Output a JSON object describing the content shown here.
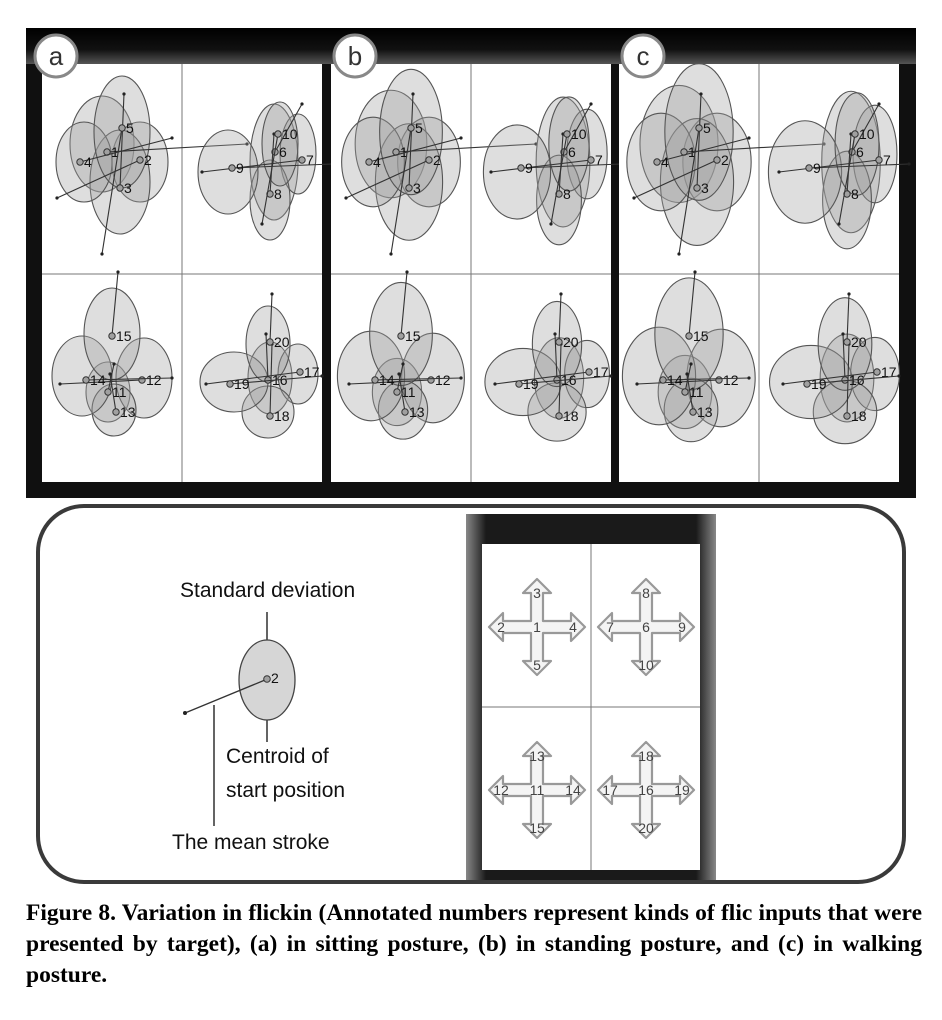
{
  "panels": [
    {
      "label": "a",
      "quads": [
        {
          "targets": [
            {
              "id": "1"
            },
            {
              "id": "2"
            },
            {
              "id": "3"
            },
            {
              "id": "4"
            },
            {
              "id": "5"
            }
          ]
        },
        {
          "targets": [
            {
              "id": "6"
            },
            {
              "id": "7"
            },
            {
              "id": "8"
            },
            {
              "id": "9"
            },
            {
              "id": "10"
            }
          ]
        },
        {
          "targets": [
            {
              "id": "11"
            },
            {
              "id": "12"
            },
            {
              "id": "13"
            },
            {
              "id": "14"
            },
            {
              "id": "15"
            }
          ]
        },
        {
          "targets": [
            {
              "id": "16"
            },
            {
              "id": "17"
            },
            {
              "id": "18"
            },
            {
              "id": "19"
            },
            {
              "id": "20"
            }
          ]
        }
      ]
    },
    {
      "label": "b",
      "quads": [
        {
          "targets": [
            {
              "id": "1"
            },
            {
              "id": "2"
            },
            {
              "id": "3"
            },
            {
              "id": "4"
            },
            {
              "id": "5"
            }
          ]
        },
        {
          "targets": [
            {
              "id": "6"
            },
            {
              "id": "7"
            },
            {
              "id": "8"
            },
            {
              "id": "9"
            },
            {
              "id": "10"
            }
          ]
        },
        {
          "targets": [
            {
              "id": "11"
            },
            {
              "id": "12"
            },
            {
              "id": "13"
            },
            {
              "id": "14"
            },
            {
              "id": "15"
            }
          ]
        },
        {
          "targets": [
            {
              "id": "16"
            },
            {
              "id": "17"
            },
            {
              "id": "18"
            },
            {
              "id": "19"
            },
            {
              "id": "20"
            }
          ]
        }
      ]
    },
    {
      "label": "c",
      "quads": [
        {
          "targets": [
            {
              "id": "1"
            },
            {
              "id": "2"
            },
            {
              "id": "3"
            },
            {
              "id": "4"
            },
            {
              "id": "5"
            }
          ]
        },
        {
          "targets": [
            {
              "id": "6"
            },
            {
              "id": "7"
            },
            {
              "id": "8"
            },
            {
              "id": "9"
            },
            {
              "id": "10"
            }
          ]
        },
        {
          "targets": [
            {
              "id": "11"
            },
            {
              "id": "12"
            },
            {
              "id": "13"
            },
            {
              "id": "14"
            },
            {
              "id": "15"
            }
          ]
        },
        {
          "targets": [
            {
              "id": "16"
            },
            {
              "id": "17"
            },
            {
              "id": "18"
            },
            {
              "id": "19"
            },
            {
              "id": "20"
            }
          ]
        }
      ]
    }
  ],
  "legend": {
    "sd_label": "Standard deviation",
    "example_id": "2",
    "centroid_label_1": "Centroid of",
    "centroid_label_2": "start position",
    "stroke_label": "The mean stroke"
  },
  "keypad": {
    "groups": [
      {
        "up": "3",
        "left": "2",
        "center": "1",
        "right": "4",
        "down": "5"
      },
      {
        "up": "8",
        "left": "7",
        "center": "6",
        "right": "9",
        "down": "10"
      },
      {
        "up": "13",
        "left": "12",
        "center": "11",
        "right": "14",
        "down": "15"
      },
      {
        "up": "18",
        "left": "17",
        "center": "16",
        "right": "19",
        "down": "20"
      }
    ]
  },
  "caption": "Figure 8.  Variation in flickin   (Annotated numbers represent kinds of flic   inputs that were presented by target), (a) in sitting posture, (b) in standing posture, and (c) in walking posture."
}
